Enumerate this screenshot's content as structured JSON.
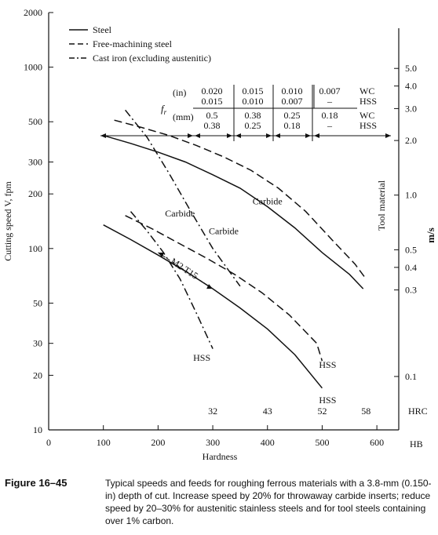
{
  "chart_data": {
    "type": "line",
    "xlabel": "Hardness",
    "ylabel_left": "Cutting speed V, fpm",
    "ylabel_right": "m/s",
    "right_axis_title": "Tool material",
    "x_ticks": [
      0,
      100,
      200,
      300,
      400,
      500,
      600
    ],
    "x_unit": "HB",
    "hrc_ticks": [
      {
        "label": "32",
        "hb": 300
      },
      {
        "label": "43",
        "hb": 400
      },
      {
        "label": "52",
        "hb": 500
      },
      {
        "label": "58",
        "hb": 580
      }
    ],
    "hrc_unit": "HRC",
    "y_left_ticks": [
      "2000",
      "1000",
      "500",
      "300",
      "200",
      "100",
      "50",
      "30",
      "20",
      "10"
    ],
    "y_left_values": [
      2000,
      1000,
      500,
      300,
      200,
      100,
      50,
      30,
      20,
      10
    ],
    "y_right_ticks": [
      "5.0",
      "4.0",
      "3.0",
      "2.0",
      "1.0",
      "0.5",
      "0.4",
      "0.3",
      "0.1"
    ],
    "y_right_values_fpm": [
      984,
      787,
      591,
      394,
      197,
      98.4,
      78.7,
      59.1,
      19.7
    ],
    "ylim": [
      10,
      2000
    ],
    "xlim": [
      0,
      640
    ],
    "log_y": true,
    "legend": [
      {
        "label": "Steel",
        "style": "solid"
      },
      {
        "label": "Free-machining steel",
        "style": "dashed"
      },
      {
        "label": "Cast iron (excluding austenitic)",
        "style": "dashdot"
      }
    ],
    "series": [
      {
        "style": "solid",
        "x": [
          100,
          150,
          200,
          250,
          300,
          350,
          400,
          450,
          500,
          550,
          575
        ],
        "y": [
          420,
          380,
          340,
          300,
          255,
          215,
          170,
          130,
          95,
          72,
          60
        ]
      },
      {
        "style": "dashed",
        "x": [
          120,
          170,
          220,
          270,
          320,
          370,
          420,
          470,
          520,
          560,
          580
        ],
        "y": [
          510,
          465,
          420,
          370,
          320,
          270,
          215,
          160,
          110,
          82,
          68
        ]
      },
      {
        "style": "solid",
        "x": [
          100,
          150,
          200,
          250,
          300,
          350,
          400,
          450,
          500
        ],
        "y": [
          135,
          112,
          92,
          75,
          60,
          47,
          36,
          26,
          17
        ]
      },
      {
        "style": "dashed",
        "x": [
          140,
          190,
          240,
          290,
          340,
          390,
          440,
          490,
          500
        ],
        "y": [
          152,
          128,
          106,
          88,
          72,
          57,
          43,
          30,
          24
        ]
      },
      {
        "style": "dashdot",
        "x": [
          140,
          180,
          220,
          260,
          300,
          330,
          350
        ],
        "y": [
          580,
          410,
          260,
          160,
          100,
          75,
          62
        ]
      },
      {
        "style": "dashdot",
        "x": [
          150,
          180,
          210,
          240,
          270,
          300
        ],
        "y": [
          160,
          125,
          95,
          68,
          44,
          28
        ]
      }
    ],
    "annotations": [
      {
        "text": "Carbide",
        "x": 400,
        "y": 175
      },
      {
        "text": "Carbide",
        "x": 320,
        "y": 120
      },
      {
        "text": "Carbide",
        "x": 240,
        "y": 150
      },
      {
        "text": "HSS",
        "x": 510,
        "y": 22
      },
      {
        "text": "HSS",
        "x": 510,
        "y": 14
      },
      {
        "text": "HSS",
        "x": 280,
        "y": 24
      },
      {
        "text": "M2 T15",
        "x": 245,
        "y": 75
      }
    ],
    "feed_table": {
      "symbol": "f_r",
      "rows": [
        {
          "unit": "(in)",
          "cells": [
            "0.020\n0.015",
            "0.015\n0.010",
            "0.010\n0.007",
            "0.007\n–"
          ],
          "tool": [
            "WC",
            "HSS"
          ]
        },
        {
          "unit": "(mm)",
          "cells": [
            "0.5\n0.38",
            "0.38\n0.25",
            "0.25\n0.18",
            "0.18\n–"
          ],
          "tool": [
            "WC",
            "HSS"
          ]
        }
      ]
    }
  },
  "figure": {
    "label": "Figure 16–45",
    "caption": "Typical speeds and feeds for roughing ferrous materials with a 3.8-mm (0.150-in) depth of cut. Increase speed by 20% for throwaway carbide inserts; reduce speed by 20–30% for austenitic stainless steels and for tool steels containing over 1% carbon."
  }
}
